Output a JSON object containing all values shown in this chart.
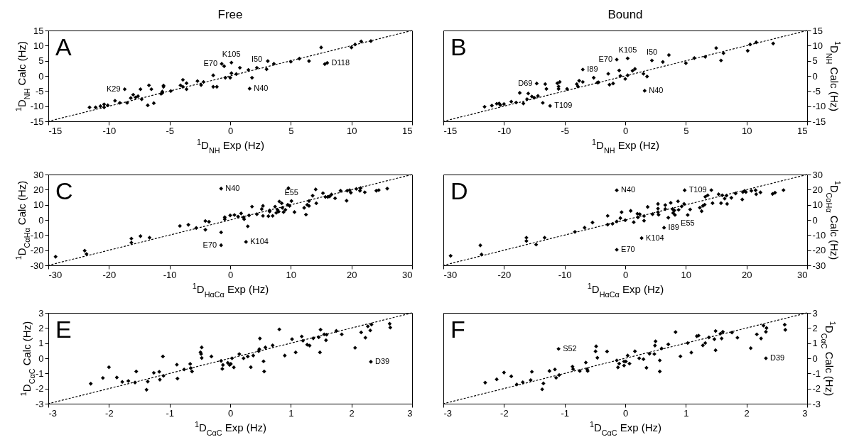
{
  "chart_data": [
    {
      "type": "scatter",
      "title": "Free",
      "xlabel": "$^{1}$D$_{NH}$ Exp (Hz)",
      "ylabel": "$^{1}$D$_{NH}$ Calc (Hz)",
      "xlim": [
        -15,
        15
      ],
      "ylim": [
        -15,
        15
      ],
      "xticks": [
        -15,
        -10,
        -5,
        0,
        5,
        10,
        15
      ],
      "yticks": [
        -15,
        -10,
        -5,
        0,
        5,
        10,
        15
      ],
      "annotations": [
        "A",
        {
          "text": "K29",
          "x": -8.7,
          "y": -4.4
        },
        {
          "text": "E70",
          "x": -0.7,
          "y": 4.0
        },
        {
          "text": "K105",
          "x": 0.1,
          "y": 4.4
        },
        {
          "text": "I50",
          "x": 2.2,
          "y": 2.7
        },
        {
          "text": "D118",
          "x": 8.0,
          "y": 4.3
        },
        {
          "text": "N40",
          "x": 1.6,
          "y": -4.2
        }
      ],
      "series": [
        {
          "type": "line",
          "color": "#000000",
          "line_style": "dotted",
          "x": [
            -15,
            15
          ],
          "values": [
            -15,
            15
          ]
        },
        {
          "color": "#000000",
          "marker": "diamond",
          "x": [
            -11.6,
            -11.1,
            -10.7,
            -10.4,
            -10.4,
            -10.1,
            -9.5,
            -9.1,
            -8.7,
            -8.5,
            -8.2,
            -8.0,
            -7.8,
            -7.6,
            -7.4,
            -7.3,
            -6.8,
            -6.7,
            -6.5,
            -6.3,
            -5.7,
            -5.6,
            -5.5,
            -5.5,
            -5.6,
            -4.9,
            -4.1,
            -3.9,
            -3.9,
            -3.6,
            -3.6,
            -2.7,
            -2.4,
            -2.2,
            -1.4,
            -1.4,
            -1.1,
            -0.7,
            -0.5,
            -0.4,
            0,
            0.1,
            0.1,
            0.5,
            0.8,
            1.5,
            1.6,
            1.8,
            2.2,
            3.0,
            3.1,
            3.6,
            5.0,
            5.7,
            6.5,
            7.5,
            7.8,
            8.0,
            10.0,
            10.3,
            10.8,
            11.6
          ],
          "values": [
            -10.4,
            -10.4,
            -10,
            -9.4,
            -10.4,
            -9.7,
            -8.2,
            -8.9,
            -4.4,
            -8.9,
            -7.3,
            -6.2,
            -7.1,
            -6.7,
            -4.4,
            -7.7,
            -9.7,
            -3.1,
            -4.4,
            -9.0,
            -5.9,
            -5.2,
            -3.2,
            -3.6,
            -5.6,
            -5.0,
            -3.1,
            -3.6,
            -1.3,
            -2.4,
            -4.4,
            -1.7,
            -3.0,
            -2.0,
            0.2,
            -3.6,
            -3.6,
            4.0,
            3.2,
            -0.6,
            -0.6,
            4.4,
            0.9,
            0.6,
            2.7,
            2.0,
            -4.2,
            -0.6,
            2.7,
            2.2,
            4.9,
            4.0,
            4.7,
            5.7,
            4.9,
            9.4,
            3.9,
            4.3,
            9.4,
            10.4,
            11.4,
            11.5
          ]
        }
      ]
    },
    {
      "type": "scatter",
      "title": "Bound",
      "xlabel": "$^{1}$D$_{NH}$ Exp (Hz)",
      "ylabel": "$^{1}$D$_{NH}$ Calc (Hz)",
      "xlim": [
        -15,
        15
      ],
      "ylim": [
        -15,
        15
      ],
      "xticks": [
        -15,
        -10,
        -5,
        0,
        5,
        10,
        15
      ],
      "yticks": [
        -15,
        -10,
        -5,
        0,
        5,
        10,
        15
      ],
      "annotations": [
        "B",
        {
          "text": "K105",
          "x": 0.2,
          "y": 5.8
        },
        {
          "text": "E70",
          "x": -0.7,
          "y": 5.4
        },
        {
          "text": "I50",
          "x": 2.2,
          "y": 5.1
        },
        {
          "text": "I89",
          "x": -3.5,
          "y": 2.1
        },
        {
          "text": "D69",
          "x": -7.3,
          "y": -2.5
        },
        {
          "text": "N40",
          "x": 1.6,
          "y": -4.9
        },
        {
          "text": "T109",
          "x": -6.2,
          "y": -9.9
        }
      ],
      "series": [
        {
          "type": "line",
          "color": "#000000",
          "line_style": "dotted",
          "x": [
            -15,
            15
          ],
          "values": [
            -15,
            15
          ]
        },
        {
          "color": "#000000",
          "marker": "diamond",
          "x": [
            -11.6,
            -11.0,
            -10.6,
            -10.4,
            -10.3,
            -10.0,
            -9.4,
            -9.0,
            -8.7,
            -8.4,
            -8.1,
            -8.0,
            -7.7,
            -7.5,
            -7.2,
            -7.3,
            -6.8,
            -6.6,
            -6.5,
            -6.2,
            -5.6,
            -5.5,
            -5.4,
            -5.5,
            -4.8,
            -4.0,
            -3.9,
            -3.8,
            -3.5,
            -3.5,
            -2.6,
            -2.3,
            -2.2,
            -1.4,
            -1.3,
            -1.0,
            -0.7,
            -0.5,
            -0.4,
            0,
            0.2,
            0.2,
            0.6,
            0.8,
            1.5,
            1.6,
            1.8,
            2.2,
            3.1,
            3.6,
            5.0,
            5.7,
            6.6,
            7.5,
            7.9,
            8.1,
            10.1,
            10.3,
            10.8,
            12.2
          ],
          "values": [
            -10.2,
            -9.8,
            -9.2,
            -9.1,
            -9.6,
            -9.3,
            -8.5,
            -8.8,
            -5.6,
            -9.1,
            -7.7,
            -5.8,
            -6.8,
            -7.2,
            -6.6,
            -2.5,
            -8.9,
            -2.7,
            -4.3,
            -9.9,
            -2.4,
            -4.3,
            -2.0,
            -3.5,
            -4.3,
            -2.7,
            -3.5,
            -1.6,
            -2.0,
            2.1,
            -0.6,
            -2.2,
            -2.1,
            0.7,
            -2.9,
            -2.5,
            5.4,
            1.8,
            0,
            -1.0,
            5.8,
            0.2,
            1.7,
            2.3,
            0.7,
            -4.9,
            -0.2,
            5.1,
            4.6,
            6.9,
            4.2,
            5.9,
            6.3,
            9.2,
            5.1,
            7.5,
            8.3,
            10.4,
            11.1,
            10.7
          ]
        }
      ]
    },
    {
      "type": "scatter",
      "xlabel": "$^{1}$D$_{HαCα}$ Exp (Hz)",
      "ylabel": "$^{1}$D$_{CαHα}$ Calc (Hz)",
      "xlim": [
        -30,
        30
      ],
      "ylim": [
        -30,
        30
      ],
      "xticks": [
        -30,
        -20,
        -10,
        0,
        10,
        20,
        30
      ],
      "yticks": [
        -30,
        -20,
        -10,
        0,
        10,
        20,
        30
      ],
      "annotations": [
        "C",
        {
          "text": "N40",
          "x": -1.5,
          "y": 20.7
        },
        {
          "text": "E55",
          "x": 10.1,
          "y": 12.5
        },
        {
          "text": "K104",
          "x": 2.6,
          "y": -14.5
        },
        {
          "text": "E70",
          "x": -1.5,
          "y": -16.7
        }
      ],
      "series": [
        {
          "type": "line",
          "color": "#000000",
          "line_style": "dotted",
          "x": [
            -30,
            30
          ],
          "values": [
            -30,
            30
          ]
        },
        {
          "color": "#000000",
          "marker": "diamond",
          "x": [
            -28.8,
            -24.0,
            -23.7,
            -16.3,
            -16.3,
            -14.8,
            -13.3,
            -8.3,
            -6.9,
            -5.6,
            -4.1,
            -4.1,
            -3.5,
            -1.5,
            -1.5,
            -1.5,
            -0.9,
            -0.9,
            0,
            0.7,
            1.3,
            1.8,
            2.2,
            2.3,
            2.6,
            2.9,
            3.1,
            3.6,
            4.4,
            5.2,
            5.4,
            5.4,
            6.5,
            6.5,
            6.3,
            7.0,
            7.4,
            7.6,
            7.8,
            8.1,
            8.0,
            8.5,
            8.6,
            8.8,
            9.1,
            9.5,
            9.6,
            9.8,
            10.6,
            10.1,
            12.2,
            12.5,
            12.7,
            13.0,
            13.0,
            13.6,
            14.2,
            14.1,
            15.3,
            15.7,
            16.1,
            16.4,
            16.7,
            17.3,
            18.2,
            19.2,
            19.3,
            19.7,
            19.9,
            20.8,
            21.4,
            21.5,
            22.2,
            24.1,
            24.5,
            25.9
          ],
          "values": [
            -24.3,
            -20.3,
            -22.5,
            -12.3,
            -15,
            -10.7,
            -11.7,
            -4,
            -3.2,
            -5.3,
            -0.7,
            -6.5,
            -1.2,
            -8.2,
            20.7,
            -16.7,
            1.8,
            0.5,
            3,
            3.3,
            2.2,
            4.3,
            1.7,
            0.5,
            -14.5,
            -4.2,
            3,
            8.8,
            3.8,
            7.2,
            9.3,
            2.7,
            6.3,
            5.5,
            2.5,
            2.7,
            8.8,
            4.7,
            6.7,
            12.2,
            5.5,
            11,
            8,
            5.2,
            6.7,
            10,
            21,
            9.3,
            5.2,
            12.5,
            8,
            3.5,
            10,
            9.3,
            12.5,
            16,
            11,
            20.2,
            17.7,
            15.2,
            15.2,
            15.5,
            16.8,
            14.3,
            19.3,
            12.7,
            19.3,
            19.7,
            18,
            20.5,
            19.3,
            21,
            18.3,
            19.3,
            19.7,
            20.7
          ]
        }
      ]
    },
    {
      "type": "scatter",
      "xlabel": "$^{1}$D$_{HαCα}$ Exp (Hz)",
      "ylabel": "$^{1}$D$_{CαHα}$ Calc (Hz)",
      "xlim": [
        -30,
        30
      ],
      "ylim": [
        -30,
        30
      ],
      "xticks": [
        -30,
        -20,
        -10,
        0,
        10,
        20,
        30
      ],
      "yticks": [
        -30,
        -20,
        -10,
        0,
        10,
        20,
        30
      ],
      "annotations": [
        "D",
        {
          "text": "N40",
          "x": -1.4,
          "y": 19.6
        },
        {
          "text": "T109",
          "x": 9.8,
          "y": 19.6
        },
        {
          "text": "I89",
          "x": 6.4,
          "y": -5.1
        },
        {
          "text": "K104",
          "x": 2.7,
          "y": -12
        },
        {
          "text": "E70",
          "x": -1.4,
          "y": -19.7
        },
        {
          "text": "E55",
          "x": 10.3,
          "y": 3.3
        }
      ],
      "series": [
        {
          "type": "line",
          "color": "#000000",
          "line_style": "dotted",
          "x": [
            -30,
            30
          ],
          "values": [
            -30,
            30
          ]
        },
        {
          "color": "#000000",
          "marker": "diamond",
          "x": [
            -28.8,
            -23.9,
            -23.7,
            -16.3,
            -16.3,
            -14.7,
            -13.3,
            -8.3,
            -6.7,
            -5.4,
            -2.9,
            -2.9,
            -2.1,
            -1.4,
            -1.4,
            -1.4,
            -0.8,
            -0.6,
            0,
            0.9,
            1.4,
            2.0,
            2.1,
            2.4,
            2.7,
            3.1,
            3.1,
            3.7,
            4.5,
            5.4,
            5.4,
            5.4,
            5.5,
            6.4,
            6.6,
            6.6,
            7.1,
            7.5,
            7.8,
            7.9,
            8.1,
            8.2,
            8.7,
            8.8,
            9.3,
            9.7,
            9.8,
            10.3,
            10.7,
            12.3,
            12.6,
            12.8,
            13.1,
            13.2,
            13.6,
            14.4,
            14.2,
            15.4,
            15.8,
            16.0,
            16.4,
            16.8,
            16.7,
            17.5,
            18.2,
            19.3,
            19.4,
            19.7,
            19.9,
            20.8,
            21.5,
            21.6,
            22.3,
            24.3,
            24.7,
            26.1
          ],
          "values": [
            -23.7,
            -16.8,
            -22.8,
            -11.7,
            -13.9,
            -16.3,
            -11.7,
            -7.9,
            -5.1,
            -1.7,
            2.7,
            -3.1,
            -2.6,
            -1.0,
            19.6,
            -19.7,
            1.2,
            5.1,
            -0.2,
            6,
            -1.5,
            4.1,
            1.7,
            3.8,
            -12,
            -0.5,
            2.6,
            8.6,
            3.8,
            10.6,
            5.1,
            7.5,
            3.4,
            -5.1,
            7.2,
            9.8,
            1.5,
            11.3,
            7.2,
            4.6,
            6.3,
            3.3,
            12.3,
            6.7,
            8.9,
            10.6,
            19.6,
            3.3,
            6.9,
            8.1,
            5.8,
            9.3,
            10.1,
            15.3,
            16.3,
            11.1,
            19.7,
            17,
            11.1,
            16.3,
            14.1,
            10.6,
            16.1,
            14.6,
            17.5,
            13.5,
            18.4,
            19.2,
            18.4,
            19.2,
            19.6,
            17,
            18.2,
            17.2,
            18,
            19.7
          ]
        }
      ]
    },
    {
      "type": "scatter",
      "xlabel": "$^{1}$D$_{CαC}$ Exp (Hz)",
      "ylabel": "$^{1}$D$_{CαC}$ Calc (Hz)",
      "xlim": [
        -3,
        3
      ],
      "ylim": [
        -3,
        3
      ],
      "xticks": [
        -3,
        -2,
        -1,
        0,
        1,
        2,
        3
      ],
      "yticks": [
        -3,
        -2,
        -1,
        0,
        1,
        2,
        3
      ],
      "annotations": [
        "E",
        {
          "text": "D39",
          "x": 2.32,
          "y": -0.23
        }
      ],
      "series": [
        {
          "type": "line",
          "color": "#000000",
          "line_style": "dotted",
          "x": [
            -3,
            3
          ],
          "values": [
            -3,
            3
          ]
        },
        {
          "color": "#000000",
          "marker": "diamond",
          "x": [
            -2.3,
            -2.1,
            -2.0,
            -1.87,
            -1.78,
            -1.68,
            -1.57,
            -1.55,
            -1.38,
            -1.36,
            -1.26,
            -1.17,
            -1.16,
            -1.11,
            -1.1,
            -0.88,
            -0.87,
            -0.76,
            -0.66,
            -0.65,
            -0.63,
            -0.49,
            -0.48,
            -0.47,
            -0.47,
            -0.31,
            -0.15,
            -0.13,
            -0.12,
            -0.04,
            -0.01,
            0.01,
            0.03,
            0.06,
            0.15,
            0.22,
            0.29,
            0.34,
            0.38,
            0.47,
            0.48,
            0.49,
            0.55,
            0.56,
            0.58,
            0.7,
            0.81,
            0.9,
            1.02,
            1.08,
            1.18,
            1.2,
            1.27,
            1.31,
            1.37,
            1.46,
            1.48,
            1.49,
            1.55,
            1.58,
            1.59,
            1.75,
            1.84,
            2.06,
            2.16,
            2.23,
            2.27,
            2.31,
            2.33,
            2.32,
            2.63,
            2.64
          ],
          "values": [
            -1.68,
            -1.3,
            -0.59,
            -1.27,
            -1.56,
            -1.5,
            -1.6,
            -0.87,
            -2.08,
            -1.54,
            -0.96,
            -0.89,
            -1.41,
            0.12,
            -1.16,
            -0.42,
            -1.34,
            -0.74,
            -0.37,
            -0.65,
            -0.87,
            0.4,
            0.28,
            0.72,
            0.02,
            0.12,
            -0.17,
            -0.7,
            -0.44,
            -0.3,
            -0.44,
            -0.37,
            0,
            -0.6,
            0.28,
            0,
            0.12,
            -0.59,
            0.18,
            0.47,
            0.6,
            1.31,
            -0.2,
            -0.87,
            0.72,
            0.85,
            1.91,
            0.18,
            1.26,
            0.39,
            1.44,
            1.16,
            0.9,
            0.84,
            1.32,
            1.39,
            0.39,
            1.89,
            1.58,
            1.19,
            1.56,
            1.81,
            1.58,
            0.69,
            1.71,
            1.36,
            2.11,
            1.84,
            2.23,
            -0.23,
            2.28,
            2.03
          ]
        }
      ]
    },
    {
      "type": "scatter",
      "xlabel": "$^{1}$D$_{CαC}$ Exp (Hz)",
      "ylabel": "$^{1}$D$_{CαC}$ Calc (Hz)",
      "xlim": [
        -3,
        3
      ],
      "ylim": [
        -3,
        3
      ],
      "xticks": [
        -3,
        -2,
        -1,
        0,
        1,
        2,
        3
      ],
      "yticks": [
        -3,
        -2,
        -1,
        0,
        1,
        2,
        3
      ],
      "annotations": [
        "F",
        {
          "text": "S52",
          "x": -1.1,
          "y": 0.62
        },
        {
          "text": "D39",
          "x": 2.32,
          "y": 0
        }
      ],
      "series": [
        {
          "type": "line",
          "color": "#000000",
          "line_style": "dotted",
          "x": [
            -3,
            3
          ],
          "values": [
            -3,
            3
          ]
        },
        {
          "color": "#000000",
          "marker": "diamond",
          "x": [
            -2.31,
            -2.12,
            -2.0,
            -1.88,
            -1.79,
            -1.69,
            -1.56,
            -1.54,
            -1.37,
            -1.35,
            -1.25,
            -1.16,
            -1.14,
            -1.1,
            -1.09,
            -0.87,
            -0.86,
            -0.75,
            -0.65,
            -0.63,
            -0.62,
            -0.49,
            -0.48,
            -0.46,
            -0.3,
            -0.14,
            -0.12,
            -0.1,
            -0.02,
            -0.02,
            0.01,
            0.04,
            0.07,
            0.16,
            0.23,
            0.3,
            0.35,
            0.4,
            0.48,
            0.49,
            0.5,
            0.57,
            0.57,
            0.6,
            0.71,
            0.83,
            0.91,
            1.03,
            1.09,
            1.18,
            1.21,
            1.28,
            1.32,
            1.38,
            1.47,
            1.49,
            1.49,
            1.57,
            1.59,
            1.61,
            1.76,
            1.85,
            2.07,
            2.17,
            2.24,
            2.28,
            2.33,
            2.32,
            2.32,
            2.63,
            2.64
          ],
          "values": [
            -1.61,
            -1.39,
            -0.94,
            -1.19,
            -1.73,
            -1.58,
            -1.44,
            -0.89,
            -2.05,
            -1.66,
            -0.84,
            -0.74,
            -1.29,
            0.62,
            -1.11,
            -0.55,
            -0.72,
            -0.84,
            -0.28,
            -0.72,
            -0.84,
            0.46,
            0.79,
            0.03,
            0.45,
            -0.14,
            -0.6,
            -0.35,
            -0.21,
            -0.48,
            -0.21,
            0.18,
            -0.35,
            0.46,
            0,
            -0.06,
            -0.63,
            0.3,
            0.28,
            0.84,
            1.12,
            -0.14,
            -0.87,
            0.65,
            0.92,
            1.73,
            0.13,
            1.01,
            0.38,
            1.46,
            1.5,
            0.85,
            1.01,
            1.38,
            1.26,
            0.53,
            1.8,
            1.63,
            1.31,
            1.75,
            1.7,
            1.36,
            0.67,
            1.58,
            1.31,
            2.16,
            2.0,
            1.75,
            0,
            2.22,
            1.88
          ]
        }
      ]
    }
  ]
}
